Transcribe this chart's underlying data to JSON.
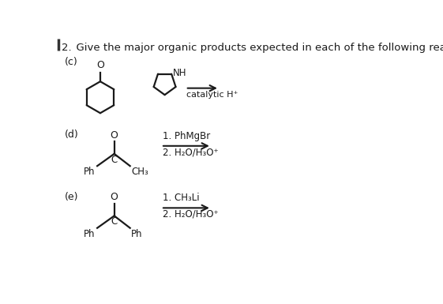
{
  "title_num": "2.",
  "title_text": "  Give the major organic products expected in each of the following reactions.",
  "bg_color": "#ffffff",
  "text_color": "#1a1a1a",
  "line_color": "#1a1a1a",
  "section_c": "(c)",
  "section_d": "(d)",
  "section_e": "(e)",
  "cat_h": "catalytic H⁺",
  "d_step1": "1. PhMgBr",
  "d_step2": "2. H₂O/H₃O⁺",
  "e_step1": "1. CH₃Li",
  "e_step2": "2. H₂O/H₃O⁺"
}
